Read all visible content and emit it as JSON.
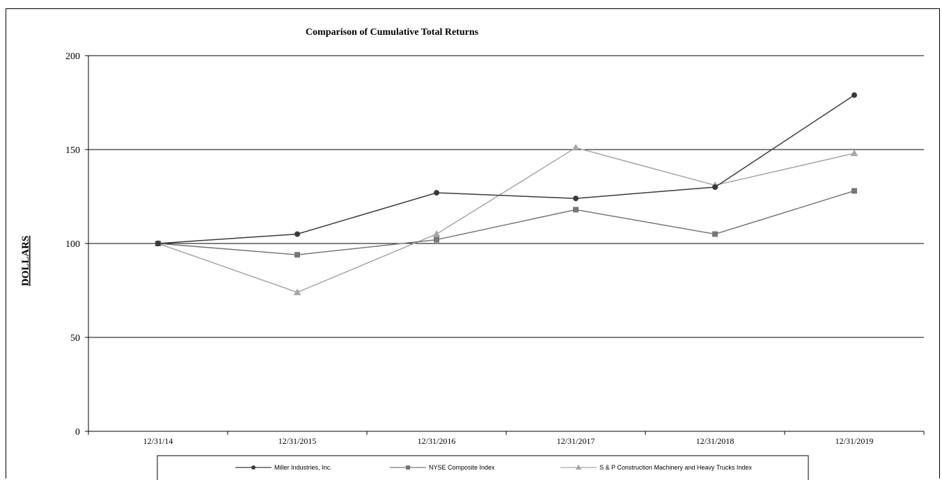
{
  "chart_data": {
    "type": "line",
    "title": "Comparison of Cumulative Total Returns",
    "ylabel": "DOLLARS",
    "xlabel": "",
    "categories": [
      "12/31/14",
      "12/31/2015",
      "12/31/2016",
      "12/31/2017",
      "12/31/2018",
      "12/31/2019"
    ],
    "ylim": [
      0,
      200
    ],
    "yticks": [
      0,
      50,
      100,
      150,
      200
    ],
    "grid": true,
    "legend_position": "bottom",
    "series": [
      {
        "name": "Miller Industries, Inc.",
        "values": [
          100,
          105,
          127,
          124,
          130,
          179
        ],
        "color": "#3a3a3a",
        "marker": "circle"
      },
      {
        "name": "NYSE Composite Index",
        "values": [
          100,
          94,
          102,
          118,
          105,
          128
        ],
        "color": "#777777",
        "marker": "square"
      },
      {
        "name": "S & P Construction Machinery and Heavy Trucks Index",
        "values": [
          100,
          74,
          105,
          151,
          131,
          148
        ],
        "color": "#a6a6a6",
        "marker": "triangle"
      }
    ]
  }
}
